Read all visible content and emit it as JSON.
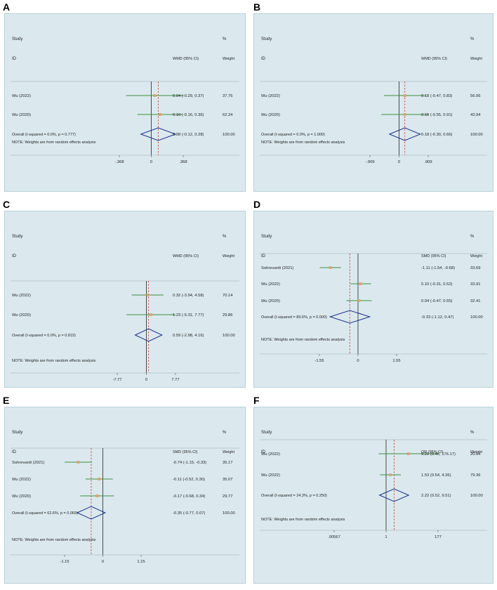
{
  "chart_data": [
    {
      "panel": "A",
      "type": "forest",
      "header": {
        "study": "Study",
        "id": "ID",
        "pct": "%",
        "effect": "WMD (95% CI)",
        "weight": "Weight"
      },
      "studies": [
        {
          "label": "Wu (2022)",
          "est": 0.04,
          "lo": -0.29,
          "hi": 0.37,
          "ci_text": "0.04 (-0.29, 0.37)",
          "weight": "37.76"
        },
        {
          "label": "Wu (2020)",
          "est": 0.1,
          "lo": -0.16,
          "hi": 0.36,
          "ci_text": "0.10 (-0.16, 0.36)",
          "weight": "62.24"
        }
      ],
      "overall": {
        "label": "Overall  (I-squared = 0.0%, p = 0.777)",
        "est": 0.08,
        "lo": -0.12,
        "hi": 0.28,
        "ci_text": "0.08 (-0.12, 0.28)",
        "weight": "100.00"
      },
      "note": "NOTE: Weights are from random effects analysis",
      "xlim": [
        -0.368,
        0.368
      ],
      "ticks": [
        {
          "v": -0.368,
          "label": "-.368"
        },
        {
          "v": 0,
          "label": "0"
        },
        {
          "v": 0.368,
          "label": ".368"
        }
      ],
      "null_value": 0
    },
    {
      "panel": "B",
      "type": "forest",
      "header": {
        "study": "Study",
        "id": "ID",
        "pct": "%",
        "effect": "WMD (95% CI)",
        "weight": "Weight"
      },
      "studies": [
        {
          "label": "Wu (2022)",
          "est": 0.18,
          "lo": -0.47,
          "hi": 0.83,
          "ci_text": "0.18 (-0.47, 0.83)",
          "weight": "56.06"
        },
        {
          "label": "Wu (2020)",
          "est": 0.18,
          "lo": -0.55,
          "hi": 0.91,
          "ci_text": "0.18 (-0.55, 0.91)",
          "weight": "43.94"
        }
      ],
      "overall": {
        "label": "Overall  (I-squared = 0.0%, p = 1.000)",
        "est": 0.18,
        "lo": -0.3,
        "hi": 0.66,
        "ci_text": "0.18 (-0.30, 0.66)",
        "weight": "100.00"
      },
      "note": "NOTE: Weights are from random effects analysis",
      "xlim": [
        -0.909,
        0.909
      ],
      "ticks": [
        {
          "v": -0.909,
          "label": "-.909"
        },
        {
          "v": 0,
          "label": "0"
        },
        {
          "v": 0.909,
          "label": ".909"
        }
      ],
      "null_value": 0
    },
    {
      "panel": "C",
      "type": "forest",
      "header": {
        "study": "Study",
        "id": "ID",
        "pct": "%",
        "effect": "WMD (95% CI)",
        "weight": "Weight"
      },
      "studies": [
        {
          "label": "Wu (2022)",
          "est": 0.32,
          "lo": -3.94,
          "hi": 4.58,
          "ci_text": "0.32 (-3.94, 4.58)",
          "weight": "70.14"
        },
        {
          "label": "Wu (2020)",
          "est": 1.23,
          "lo": -5.31,
          "hi": 7.77,
          "ci_text": "1.23 (-5.31, 7.77)",
          "weight": "29.86"
        }
      ],
      "overall": {
        "label": "Overall  (I-squared = 0.0%, p = 0.819)",
        "est": 0.59,
        "lo": -2.98,
        "hi": 4.16,
        "ci_text": "0.59 (-2.98, 4.16)",
        "weight": "100.00"
      },
      "note": "NOTE: Weights are from random effects analysis",
      "xlim": [
        -7.77,
        7.77
      ],
      "ticks": [
        {
          "v": -7.77,
          "label": "-7.77"
        },
        {
          "v": 0,
          "label": "0"
        },
        {
          "v": 7.77,
          "label": "7.77"
        }
      ],
      "null_value": 0
    },
    {
      "panel": "D",
      "type": "forest",
      "header": {
        "study": "Study",
        "id": "ID",
        "pct": "%",
        "effect": "SMD (95% CI)",
        "weight": "Weight"
      },
      "studies": [
        {
          "label": "Sohrevardi (2021)",
          "est": -1.11,
          "lo": -1.54,
          "hi": -0.68,
          "ci_text": "-1.11 (-1.54, -0.68)",
          "weight": "33.69"
        },
        {
          "label": "Wu (2022)",
          "est": 0.1,
          "lo": -0.31,
          "hi": 0.52,
          "ci_text": "0.10 (-0.31, 0.52)",
          "weight": "33.91"
        },
        {
          "label": "Wu (2020)",
          "est": 0.04,
          "lo": -0.47,
          "hi": 0.55,
          "ci_text": "0.04 (-0.47, 0.55)",
          "weight": "32.41"
        }
      ],
      "overall": {
        "label": "Overall  (I-squared = 89.6%, p = 0.000)",
        "est": -0.33,
        "lo": -1.12,
        "hi": 0.47,
        "ci_text": "-0.33 (-1.12, 0.47)",
        "weight": "100.00"
      },
      "note": "NOTE: Weights are from random effects analysis",
      "xlim": [
        -1.55,
        1.55
      ],
      "ticks": [
        {
          "v": -1.55,
          "label": "-1.55"
        },
        {
          "v": 0,
          "label": "0"
        },
        {
          "v": 1.55,
          "label": "1.55"
        }
      ],
      "null_value": 0
    },
    {
      "panel": "E",
      "type": "forest",
      "header": {
        "study": "Study",
        "id": "ID",
        "pct": "%",
        "effect": "SMD (95% CI)",
        "weight": "Weight"
      },
      "studies": [
        {
          "label": "Sohrevardi (2021)",
          "est": -0.74,
          "lo": -1.15,
          "hi": -0.33,
          "ci_text": "-0.74 (-1.15, -0.33)",
          "weight": "35.17"
        },
        {
          "label": "Wu (2022)",
          "est": -0.11,
          "lo": -0.52,
          "hi": 0.3,
          "ci_text": "-0.11 (-0.52, 0.30)",
          "weight": "35.07"
        },
        {
          "label": "Wu (2020)",
          "est": -0.17,
          "lo": -0.68,
          "hi": 0.34,
          "ci_text": "-0.17 (-0.68, 0.34)",
          "weight": "29.77"
        }
      ],
      "overall": {
        "label": "Overall  (I-squared = 62.6%, p = 0.069)",
        "est": -0.35,
        "lo": -0.77,
        "hi": 0.07,
        "ci_text": "-0.35 (-0.77, 0.07)",
        "weight": "100.00"
      },
      "note": "NOTE: Weights are from random effects analysis",
      "xlim": [
        -1.15,
        1.15
      ],
      "ticks": [
        {
          "v": -1.15,
          "label": "-1.15"
        },
        {
          "v": 0,
          "label": "0"
        },
        {
          "v": 1.15,
          "label": "1.15"
        }
      ],
      "null_value": 0
    },
    {
      "panel": "F",
      "type": "forest",
      "log_scale": true,
      "header": {
        "study": "Study",
        "id": "ID",
        "pct": "%",
        "effect": "OR (95% CI)",
        "weight": "Weight"
      },
      "studies": [
        {
          "label": "Wu (2022)",
          "est": 9.21,
          "lo": 0.48,
          "hi": 176.17,
          "ci_text": "9.21 (0.48, 176.17)",
          "weight": "20.64"
        },
        {
          "label": "Wu (2022)",
          "est": 1.53,
          "lo": 0.54,
          "hi": 4.36,
          "ci_text": "1.53 (0.54, 4.36)",
          "weight": "79.36"
        }
      ],
      "overall": {
        "label": "Overall  (I-squared = 24.3%, p = 0.250)",
        "est": 2.22,
        "lo": 0.52,
        "hi": 9.51,
        "ci_text": "2.22 (0.52, 9.51)",
        "weight": "100.00"
      },
      "note": "NOTE: Weights are from random effects analysis",
      "xlim": [
        0.00567,
        177
      ],
      "ticks": [
        {
          "v": 0.00567,
          "label": ".00567"
        },
        {
          "v": 1,
          "label": "1"
        },
        {
          "v": 177,
          "label": "177"
        }
      ],
      "null_value": 1
    }
  ]
}
